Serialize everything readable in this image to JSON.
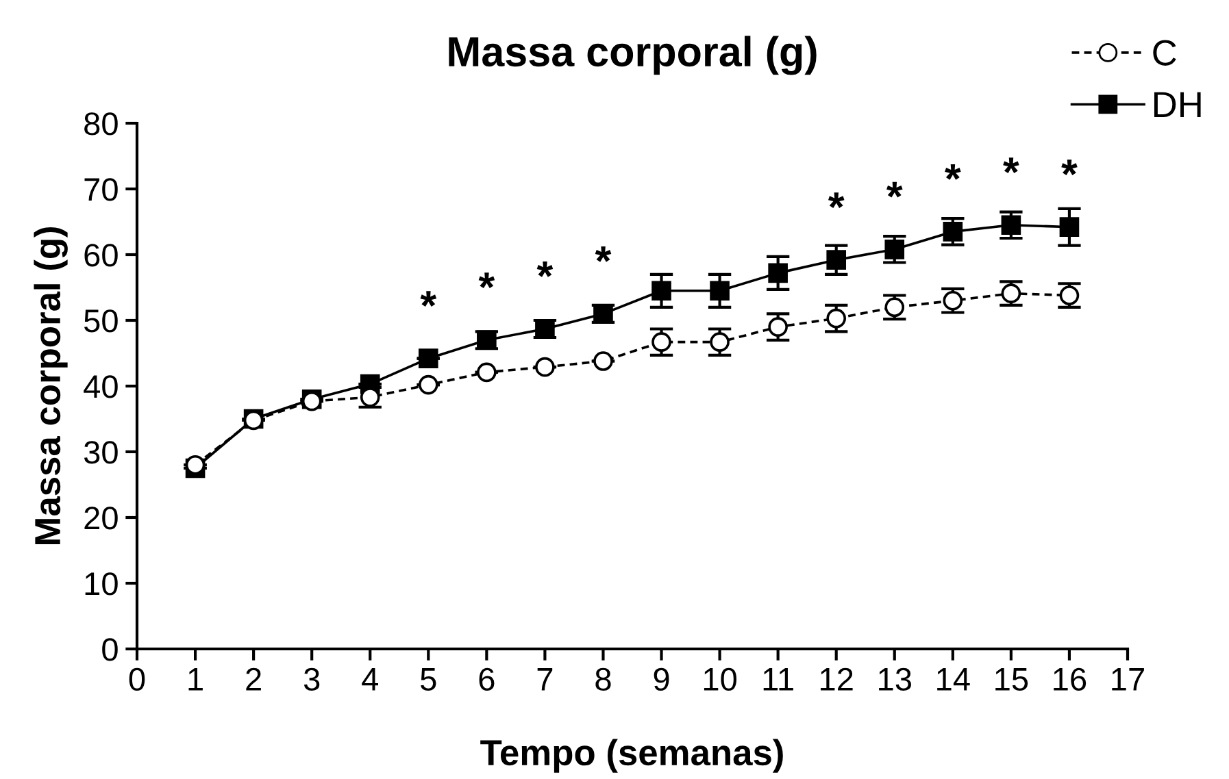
{
  "chart_data": {
    "type": "line",
    "title": "Massa corporal (g)",
    "xlabel": "Tempo (semanas)",
    "ylabel": "Massa corporal (g)",
    "x": [
      1,
      2,
      3,
      4,
      5,
      6,
      7,
      8,
      9,
      10,
      11,
      12,
      13,
      14,
      15,
      16
    ],
    "series": [
      {
        "name": "C",
        "color": "#000000",
        "marker": "circle",
        "line_style": "dashed",
        "values": [
          28,
          34.8,
          37.7,
          38.3,
          40.2,
          42.1,
          42.9,
          43.8,
          46.7,
          46.7,
          49,
          50.3,
          52,
          53,
          54.1,
          53.8
        ],
        "errors": [
          null,
          null,
          null,
          1.5,
          null,
          null,
          null,
          null,
          2,
          2,
          2,
          2,
          1.8,
          1.8,
          1.8,
          1.8
        ]
      },
      {
        "name": "DH",
        "color": "#000000",
        "marker": "square",
        "line_style": "solid",
        "values": [
          27.5,
          35,
          38,
          40.3,
          44.2,
          47,
          48.7,
          51,
          54.5,
          54.5,
          57.2,
          59.2,
          60.8,
          63.5,
          64.5,
          64.2
        ],
        "errors": [
          null,
          null,
          null,
          null,
          null,
          1.3,
          1.3,
          1.3,
          2.5,
          2.5,
          2.5,
          2.2,
          2,
          2,
          2,
          2.8
        ]
      }
    ],
    "annotations": [
      {
        "text": "*",
        "x": 5,
        "y": 44.2
      },
      {
        "text": "*",
        "x": 6,
        "y": 47
      },
      {
        "text": "*",
        "x": 7,
        "y": 48.7
      },
      {
        "text": "*",
        "x": 8,
        "y": 51
      },
      {
        "text": "*",
        "x": 12,
        "y": 59.2
      },
      {
        "text": "*",
        "x": 13,
        "y": 60.8
      },
      {
        "text": "*",
        "x": 14,
        "y": 63.5
      },
      {
        "text": "*",
        "x": 15,
        "y": 64.5
      },
      {
        "text": "*",
        "x": 16,
        "y": 64.2
      }
    ],
    "xlim": [
      0,
      17
    ],
    "xticks": [
      0,
      1,
      2,
      3,
      4,
      5,
      6,
      7,
      8,
      9,
      10,
      11,
      12,
      13,
      14,
      15,
      16,
      17
    ],
    "ylim": [
      0,
      80
    ],
    "yticks": [
      0,
      10,
      20,
      30,
      40,
      50,
      60,
      70,
      80
    ],
    "grid": false,
    "legend": "top right"
  }
}
